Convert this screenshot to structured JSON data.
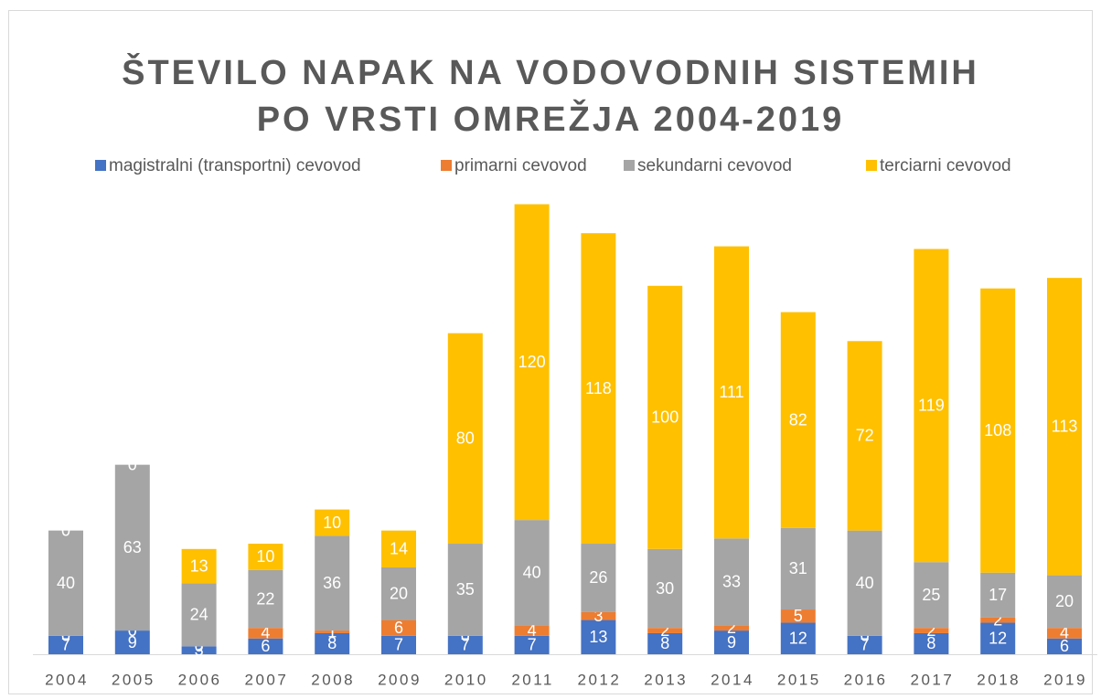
{
  "chart_data": {
    "type": "stacked_bar",
    "title": [
      "ŠTEVILO NAPAK NA VODOVODNIH SISTEMIH",
      "PO VRSTI OMREŽJA 2004-2019"
    ],
    "categories": [
      "2004",
      "2005",
      "2006",
      "2007",
      "2008",
      "2009",
      "2010",
      "2011",
      "2012",
      "2013",
      "2014",
      "2015",
      "2016",
      "2017",
      "2018",
      "2019"
    ],
    "series": [
      {
        "name": "magistralni (transportni) cevovod",
        "color": "#4472c4",
        "values": [
          7,
          9,
          3,
          6,
          8,
          7,
          7,
          7,
          13,
          8,
          9,
          12,
          7,
          8,
          12,
          6
        ]
      },
      {
        "name": "primarni cevovod",
        "color": "#ed7d31",
        "values": [
          0,
          0,
          0,
          4,
          1,
          6,
          0,
          4,
          3,
          2,
          2,
          5,
          0,
          2,
          2,
          4
        ]
      },
      {
        "name": "sekundarni cevovod",
        "color": "#a5a5a5",
        "values": [
          40,
          63,
          24,
          22,
          36,
          20,
          35,
          40,
          26,
          30,
          33,
          31,
          40,
          25,
          17,
          20
        ]
      },
      {
        "name": "terciarni cevovod",
        "color": "#ffc000",
        "values": [
          0,
          0,
          13,
          10,
          10,
          14,
          80,
          120,
          118,
          100,
          111,
          82,
          72,
          119,
          108,
          113
        ]
      }
    ],
    "legend": "top"
  }
}
